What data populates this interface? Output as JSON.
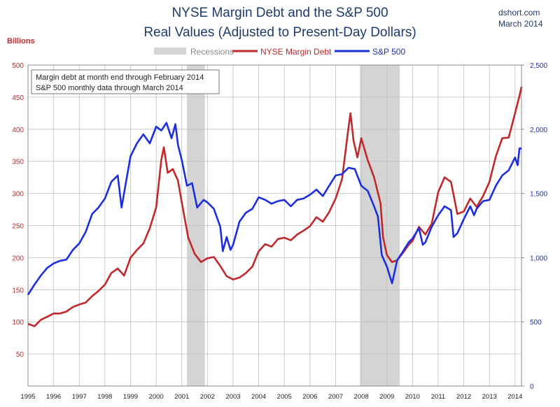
{
  "header": {
    "title_line1": "NYSE Margin Debt and the S&P 500",
    "title_line2": "Real Values (Adjusted to Present-Day Dollars)",
    "source": "dshort.com",
    "date": "March 2014"
  },
  "annotation": {
    "line1": "Margin debt at month end through February 2014",
    "line2": "S&P 500 monthly data through March 2014"
  },
  "colors": {
    "margin_debt": "#c0282b",
    "sp500": "#1c2ee0",
    "recession": "#d4d4d4",
    "grid": "#bfbfbf"
  },
  "chart_data": {
    "type": "line",
    "title": "NYSE Margin Debt and the S&P 500",
    "subtitle": "Real Values (Adjusted to Present-Day Dollars)",
    "ylabel": "Billions",
    "ylim": [
      0,
      500
    ],
    "y2lim": [
      0,
      2500
    ],
    "xlim": [
      1995.0,
      2014.25
    ],
    "grid": true,
    "legend_position": "top",
    "yticks": [
      "50",
      "100",
      "150",
      "200",
      "250",
      "300",
      "350",
      "400",
      "450",
      "500"
    ],
    "y2ticks": [
      "0",
      "500",
      "1,000",
      "1,500",
      "2,000",
      "2,500"
    ],
    "xticks": [
      "1995",
      "1996",
      "1997",
      "1998",
      "1999",
      "2000",
      "2001",
      "2002",
      "2003",
      "2004",
      "2005",
      "2006",
      "2007",
      "2008",
      "2009",
      "2010",
      "2011",
      "2012",
      "2013",
      "2014"
    ],
    "recessions": [
      {
        "start": 2001.2,
        "end": 2001.9
      },
      {
        "start": 2007.95,
        "end": 2009.5
      }
    ],
    "legend": {
      "recession": "Recessions",
      "margin_debt": "NYSE Margin Debt",
      "sp500": "S&P 500"
    },
    "series": [
      {
        "name": "NYSE Margin Debt",
        "axis": "left",
        "points": [
          [
            1995.0,
            97
          ],
          [
            1995.25,
            93
          ],
          [
            1995.5,
            103
          ],
          [
            1995.75,
            108
          ],
          [
            1996.0,
            113
          ],
          [
            1996.25,
            113
          ],
          [
            1996.5,
            116
          ],
          [
            1996.75,
            123
          ],
          [
            1997.0,
            127
          ],
          [
            1997.25,
            130
          ],
          [
            1997.5,
            140
          ],
          [
            1997.75,
            148
          ],
          [
            1998.0,
            158
          ],
          [
            1998.25,
            176
          ],
          [
            1998.5,
            183
          ],
          [
            1998.75,
            172
          ],
          [
            1999.0,
            200
          ],
          [
            1999.25,
            212
          ],
          [
            1999.5,
            222
          ],
          [
            1999.75,
            246
          ],
          [
            2000.0,
            278
          ],
          [
            2000.2,
            352
          ],
          [
            2000.3,
            372
          ],
          [
            2000.45,
            332
          ],
          [
            2000.65,
            338
          ],
          [
            2000.85,
            320
          ],
          [
            2001.0,
            286
          ],
          [
            2001.25,
            231
          ],
          [
            2001.5,
            206
          ],
          [
            2001.75,
            193
          ],
          [
            2002.0,
            199
          ],
          [
            2002.25,
            201
          ],
          [
            2002.5,
            187
          ],
          [
            2002.75,
            171
          ],
          [
            2003.0,
            166
          ],
          [
            2003.25,
            169
          ],
          [
            2003.5,
            176
          ],
          [
            2003.75,
            186
          ],
          [
            2004.0,
            210
          ],
          [
            2004.25,
            221
          ],
          [
            2004.5,
            217
          ],
          [
            2004.75,
            229
          ],
          [
            2005.0,
            231
          ],
          [
            2005.25,
            227
          ],
          [
            2005.5,
            236
          ],
          [
            2005.75,
            242
          ],
          [
            2006.0,
            249
          ],
          [
            2006.25,
            263
          ],
          [
            2006.5,
            256
          ],
          [
            2006.75,
            271
          ],
          [
            2007.0,
            292
          ],
          [
            2007.25,
            322
          ],
          [
            2007.5,
            402
          ],
          [
            2007.58,
            425
          ],
          [
            2007.7,
            382
          ],
          [
            2007.85,
            356
          ],
          [
            2008.0,
            386
          ],
          [
            2008.25,
            352
          ],
          [
            2008.5,
            325
          ],
          [
            2008.75,
            285
          ],
          [
            2008.85,
            232
          ],
          [
            2009.0,
            204
          ],
          [
            2009.2,
            193
          ],
          [
            2009.4,
            196
          ],
          [
            2009.6,
            206
          ],
          [
            2009.85,
            220
          ],
          [
            2010.0,
            226
          ],
          [
            2010.25,
            248
          ],
          [
            2010.5,
            236
          ],
          [
            2010.75,
            253
          ],
          [
            2011.0,
            302
          ],
          [
            2011.25,
            325
          ],
          [
            2011.5,
            318
          ],
          [
            2011.75,
            268
          ],
          [
            2012.0,
            272
          ],
          [
            2012.25,
            292
          ],
          [
            2012.5,
            279
          ],
          [
            2012.75,
            296
          ],
          [
            2013.0,
            318
          ],
          [
            2013.25,
            358
          ],
          [
            2013.5,
            386
          ],
          [
            2013.75,
            387
          ],
          [
            2014.0,
            425
          ],
          [
            2014.17,
            452
          ],
          [
            2014.25,
            466
          ]
        ]
      },
      {
        "name": "S&P 500",
        "axis": "right",
        "points": [
          [
            1995.0,
            710
          ],
          [
            1995.25,
            790
          ],
          [
            1995.5,
            860
          ],
          [
            1995.75,
            920
          ],
          [
            1996.0,
            955
          ],
          [
            1996.25,
            975
          ],
          [
            1996.5,
            985
          ],
          [
            1996.75,
            1060
          ],
          [
            1997.0,
            1110
          ],
          [
            1997.25,
            1200
          ],
          [
            1997.5,
            1340
          ],
          [
            1997.75,
            1390
          ],
          [
            1998.0,
            1460
          ],
          [
            1998.25,
            1590
          ],
          [
            1998.5,
            1640
          ],
          [
            1998.65,
            1390
          ],
          [
            1998.85,
            1620
          ],
          [
            1999.0,
            1790
          ],
          [
            1999.25,
            1890
          ],
          [
            1999.5,
            1960
          ],
          [
            1999.75,
            1890
          ],
          [
            2000.0,
            2020
          ],
          [
            2000.2,
            1990
          ],
          [
            2000.4,
            2050
          ],
          [
            2000.6,
            1930
          ],
          [
            2000.75,
            2040
          ],
          [
            2000.85,
            1880
          ],
          [
            2001.0,
            1760
          ],
          [
            2001.2,
            1560
          ],
          [
            2001.4,
            1580
          ],
          [
            2001.6,
            1390
          ],
          [
            2001.85,
            1450
          ],
          [
            2002.0,
            1430
          ],
          [
            2002.25,
            1380
          ],
          [
            2002.5,
            1240
          ],
          [
            2002.6,
            1050
          ],
          [
            2002.75,
            1160
          ],
          [
            2002.9,
            1060
          ],
          [
            2003.0,
            1100
          ],
          [
            2003.25,
            1280
          ],
          [
            2003.5,
            1350
          ],
          [
            2003.75,
            1380
          ],
          [
            2004.0,
            1470
          ],
          [
            2004.25,
            1450
          ],
          [
            2004.5,
            1420
          ],
          [
            2004.75,
            1440
          ],
          [
            2005.0,
            1450
          ],
          [
            2005.25,
            1400
          ],
          [
            2005.5,
            1450
          ],
          [
            2005.75,
            1460
          ],
          [
            2006.0,
            1490
          ],
          [
            2006.25,
            1530
          ],
          [
            2006.5,
            1480
          ],
          [
            2006.75,
            1560
          ],
          [
            2007.0,
            1640
          ],
          [
            2007.25,
            1650
          ],
          [
            2007.5,
            1700
          ],
          [
            2007.75,
            1690
          ],
          [
            2008.0,
            1560
          ],
          [
            2008.25,
            1520
          ],
          [
            2008.5,
            1400
          ],
          [
            2008.65,
            1320
          ],
          [
            2008.8,
            1020
          ],
          [
            2009.0,
            930
          ],
          [
            2009.2,
            800
          ],
          [
            2009.4,
            980
          ],
          [
            2009.6,
            1040
          ],
          [
            2009.85,
            1120
          ],
          [
            2010.0,
            1150
          ],
          [
            2010.25,
            1230
          ],
          [
            2010.4,
            1100
          ],
          [
            2010.5,
            1120
          ],
          [
            2010.75,
            1240
          ],
          [
            2011.0,
            1330
          ],
          [
            2011.25,
            1400
          ],
          [
            2011.5,
            1370
          ],
          [
            2011.6,
            1160
          ],
          [
            2011.75,
            1190
          ],
          [
            2012.0,
            1300
          ],
          [
            2012.25,
            1400
          ],
          [
            2012.4,
            1330
          ],
          [
            2012.5,
            1380
          ],
          [
            2012.75,
            1440
          ],
          [
            2013.0,
            1450
          ],
          [
            2013.25,
            1560
          ],
          [
            2013.5,
            1640
          ],
          [
            2013.75,
            1680
          ],
          [
            2014.0,
            1780
          ],
          [
            2014.1,
            1720
          ],
          [
            2014.17,
            1850
          ],
          [
            2014.25,
            1850
          ]
        ]
      }
    ]
  }
}
